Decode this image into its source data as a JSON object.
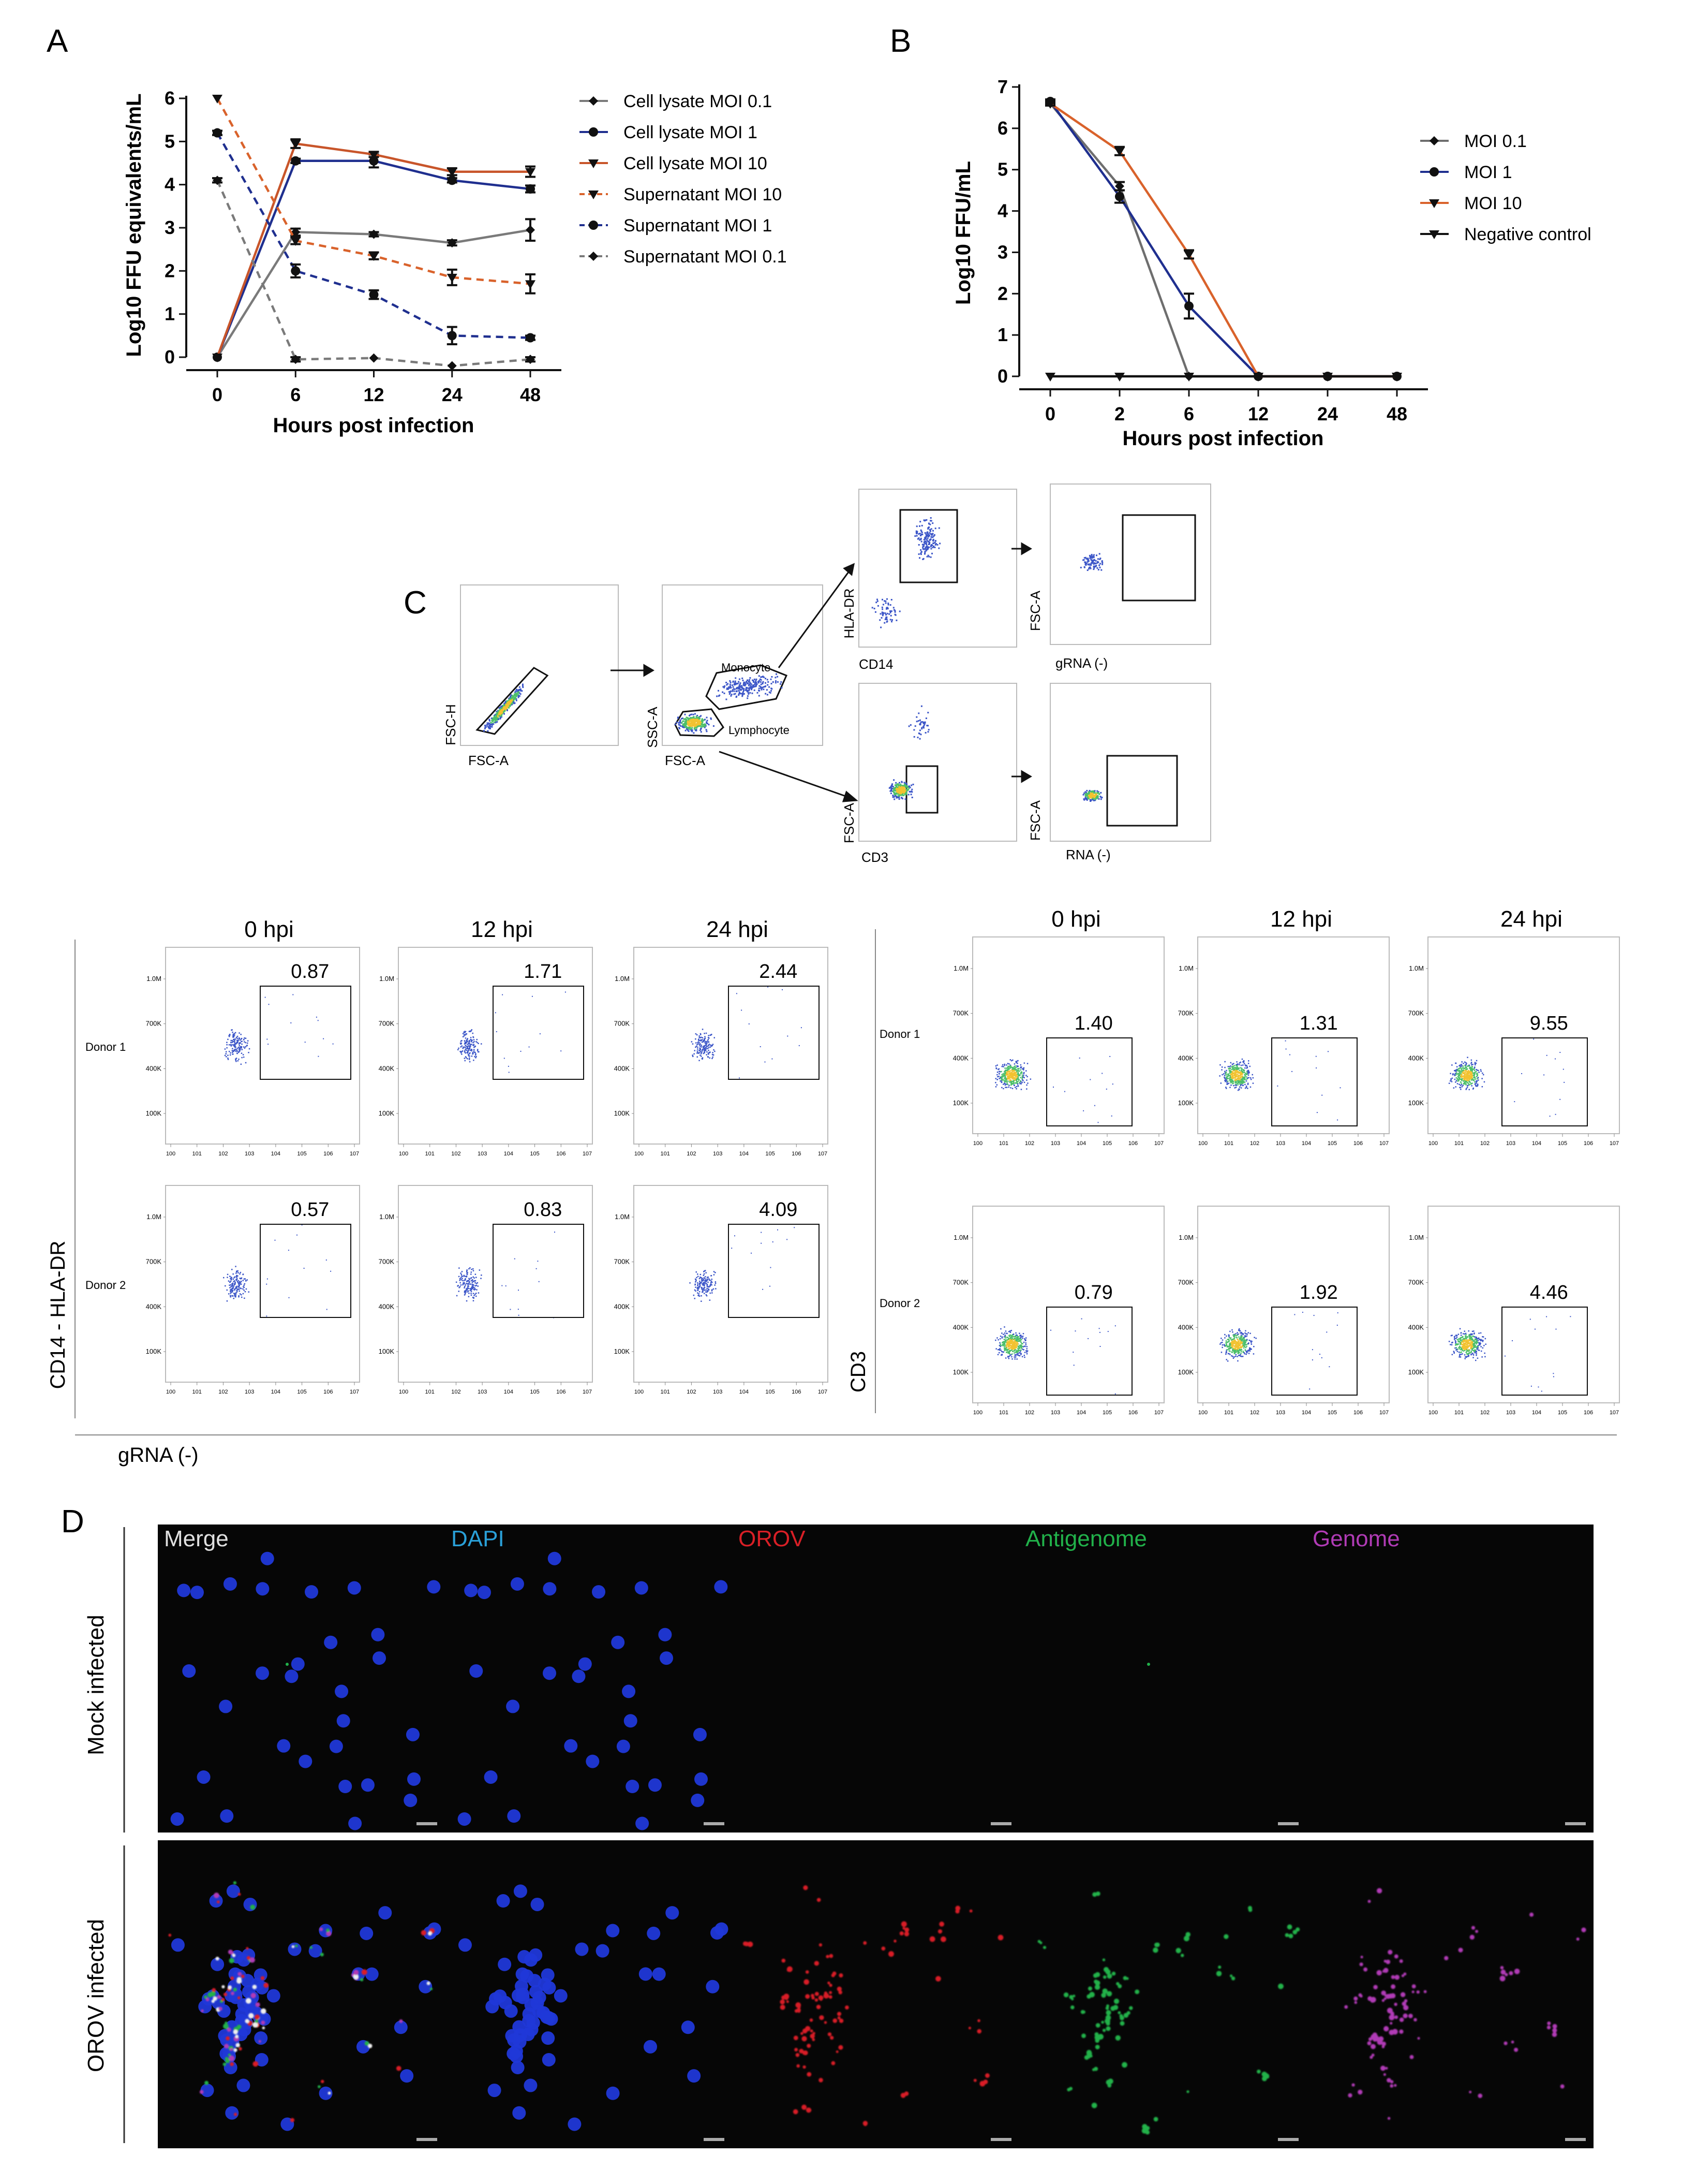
{
  "panels": {
    "A": "A",
    "B": "B",
    "C": "C",
    "D": "D"
  },
  "chart_data": [
    {
      "type": "line",
      "panel": "A",
      "xlabel": "Hours post infection",
      "ylabel": "Log10 FFU equivalents/mL",
      "categories": [
        "0",
        "6",
        "12",
        "24",
        "48"
      ],
      "ylim": [
        0,
        6
      ],
      "yticks": [
        "0",
        "1",
        "2",
        "3",
        "4",
        "5",
        "6"
      ],
      "legend_position": "right",
      "series": [
        {
          "name": "Cell lysate MOI 0.1",
          "color": "#7a7a7a",
          "style": "solid",
          "marker": "diamond",
          "values": [
            0.0,
            2.9,
            2.85,
            2.65,
            2.95
          ],
          "errors": [
            0.02,
            0.08,
            0.05,
            0.06,
            0.25
          ]
        },
        {
          "name": "Cell lysate MOI 1",
          "color": "#1f2f8f",
          "style": "solid",
          "marker": "circle",
          "values": [
            0.0,
            4.55,
            4.55,
            4.1,
            3.9
          ],
          "errors": [
            0.02,
            0.05,
            0.15,
            0.05,
            0.08
          ]
        },
        {
          "name": "Cell lysate MOI 10",
          "color": "#c8552a",
          "style": "solid",
          "marker": "triangle",
          "values": [
            0.0,
            4.95,
            4.7,
            4.3,
            4.3
          ],
          "errors": [
            0.02,
            0.1,
            0.06,
            0.08,
            0.12
          ]
        },
        {
          "name": "Supernatant MOI 10",
          "color": "#d9622b",
          "style": "dashed",
          "marker": "triangle",
          "values": [
            6.0,
            2.7,
            2.35,
            1.85,
            1.7
          ],
          "errors": [
            0.0,
            0.08,
            0.08,
            0.18,
            0.22
          ]
        },
        {
          "name": "Supernatant MOI 1",
          "color": "#1f2f8f",
          "style": "dashed",
          "marker": "circle",
          "values": [
            5.2,
            2.0,
            1.45,
            0.5,
            0.45
          ],
          "errors": [
            0.05,
            0.15,
            0.1,
            0.2,
            0.05
          ]
        },
        {
          "name": "Supernatant MOI 0.1",
          "color": "#7a7a7a",
          "style": "dashed",
          "marker": "diamond",
          "values": [
            4.1,
            -0.05,
            -0.02,
            -0.2,
            -0.05
          ],
          "errors": [
            0.05,
            0.05,
            0.02,
            0.02,
            0.05
          ]
        }
      ]
    },
    {
      "type": "line",
      "panel": "B",
      "xlabel": "Hours post infection",
      "ylabel": "Log10 FFU/mL",
      "categories": [
        "0",
        "2",
        "6",
        "12",
        "24",
        "48"
      ],
      "ylim": [
        0,
        7
      ],
      "yticks": [
        "0",
        "1",
        "2",
        "3",
        "4",
        "5",
        "6",
        "7"
      ],
      "legend_position": "right",
      "series": [
        {
          "name": "MOI 0.1",
          "color": "#6e6e6e",
          "marker": "diamond",
          "values": [
            6.6,
            4.6,
            0,
            0,
            0,
            0
          ],
          "errors": [
            0.05,
            0.1,
            0,
            0,
            0,
            0
          ]
        },
        {
          "name": "MOI 1",
          "color": "#1f2f8f",
          "marker": "circle",
          "values": [
            6.65,
            4.35,
            1.7,
            0,
            0,
            0
          ],
          "errors": [
            0.05,
            0.15,
            0.3,
            0,
            0,
            0
          ]
        },
        {
          "name": "MOI 10",
          "color": "#d9622b",
          "marker": "triangle",
          "values": [
            6.6,
            5.45,
            2.95,
            0,
            0,
            0
          ],
          "errors": [
            0.05,
            0.1,
            0.1,
            0,
            0,
            0
          ]
        },
        {
          "name": "Negative control",
          "color": "#111111",
          "marker": "triangle",
          "values": [
            0,
            0,
            0,
            0,
            0,
            0
          ],
          "errors": [
            0,
            0,
            0,
            0,
            0,
            0
          ]
        }
      ]
    }
  ],
  "gating": {
    "plot1": {
      "y": "FSC-H",
      "x": "FSC-A"
    },
    "plot2": {
      "y": "SSC-A",
      "x": "FSC-A",
      "gate1": "Monocyte",
      "gate2": "Lymphocyte"
    },
    "plot3": {
      "y": "HLA-DR",
      "x": "CD14"
    },
    "plot4": {
      "y": "FSC-A",
      "x": "gRNA (-)"
    },
    "plot5": {
      "y": "FSC-A",
      "x": "CD3"
    },
    "plot6": {
      "y": "FSC-A",
      "x": "RNA (-)"
    }
  },
  "flow": {
    "timepoints": [
      "0 hpi",
      "12 hpi",
      "24 hpi"
    ],
    "donors": [
      "Donor 1",
      "Donor 2"
    ],
    "left_values": [
      [
        "0.87",
        "1.71",
        "2.44"
      ],
      [
        "0.57",
        "0.83",
        "4.09"
      ]
    ],
    "right_values": [
      [
        "1.40",
        "1.31",
        "9.55"
      ],
      [
        "0.79",
        "1.92",
        "4.46"
      ]
    ],
    "left_ylabel": "CD14 - HLA-DR",
    "right_ylabel": "CD3",
    "xlabel": "gRNA (-)",
    "yticks": [
      "1.0M",
      "700K",
      "400K",
      "100K"
    ]
  },
  "microscopy": {
    "channels": [
      {
        "label": "Merge",
        "color": "#e0e0e0"
      },
      {
        "label": "DAPI",
        "color": "#2aa0d8"
      },
      {
        "label": "OROV",
        "color": "#d81f26"
      },
      {
        "label": "Antigenome",
        "color": "#21b14a"
      },
      {
        "label": "Genome",
        "color": "#b03bb5"
      }
    ],
    "rows": [
      "Mock infected",
      "OROV infected"
    ]
  }
}
